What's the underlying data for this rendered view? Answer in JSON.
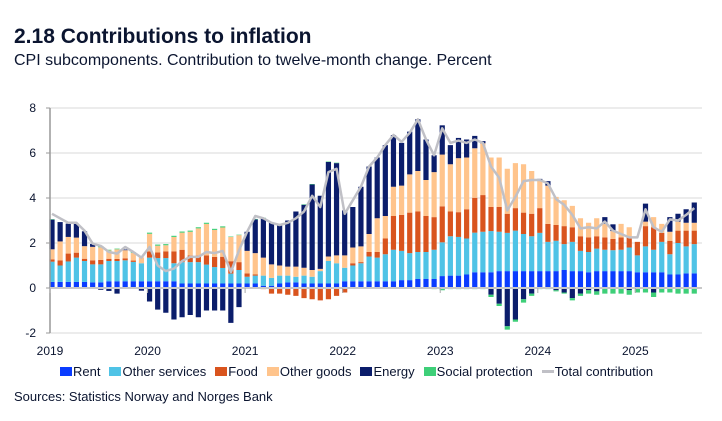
{
  "header": {
    "title": "2.18 Contributions to inflation",
    "subtitle": "CPI subcomponents. Contribution to twelve-month change. Percent"
  },
  "source": "Sources: Statistics Norway and Norges Bank",
  "chart_data": {
    "type": "bar",
    "stacked": true,
    "ylim": [
      -2,
      8
    ],
    "yticks": [
      -2,
      0,
      2,
      4,
      6,
      8
    ],
    "xtick_labels": [
      "2019",
      "2020",
      "2021",
      "2022",
      "2023",
      "2024",
      "2025"
    ],
    "grid": true,
    "legend_position": "bottom",
    "categories": [
      "2019-01",
      "2019-02",
      "2019-03",
      "2019-04",
      "2019-05",
      "2019-06",
      "2019-07",
      "2019-08",
      "2019-09",
      "2019-10",
      "2019-11",
      "2019-12",
      "2020-01",
      "2020-02",
      "2020-03",
      "2020-04",
      "2020-05",
      "2020-06",
      "2020-07",
      "2020-08",
      "2020-09",
      "2020-10",
      "2020-11",
      "2020-12",
      "2021-01",
      "2021-02",
      "2021-03",
      "2021-04",
      "2021-05",
      "2021-06",
      "2021-07",
      "2021-08",
      "2021-09",
      "2021-10",
      "2021-11",
      "2021-12",
      "2022-01",
      "2022-02",
      "2022-03",
      "2022-04",
      "2022-05",
      "2022-06",
      "2022-07",
      "2022-08",
      "2022-09",
      "2022-10",
      "2022-11",
      "2022-12",
      "2023-01",
      "2023-02",
      "2023-03",
      "2023-04",
      "2023-05",
      "2023-06",
      "2023-07",
      "2023-08",
      "2023-09",
      "2023-10",
      "2023-11",
      "2023-12",
      "2024-01",
      "2024-02",
      "2024-03",
      "2024-04",
      "2024-05",
      "2024-06",
      "2024-07",
      "2024-08",
      "2024-09",
      "2024-10",
      "2024-11",
      "2024-12",
      "2025-01",
      "2025-02",
      "2025-03",
      "2025-04",
      "2025-05",
      "2025-06",
      "2025-07",
      "2025-08"
    ],
    "series": [
      {
        "name": "Rent",
        "color": "#0a3cff",
        "values": [
          0.27,
          0.27,
          0.27,
          0.27,
          0.27,
          0.25,
          0.25,
          0.3,
          0.3,
          0.3,
          0.3,
          0.3,
          0.3,
          0.3,
          0.3,
          0.3,
          0.2,
          0.2,
          0.2,
          0.2,
          0.2,
          0.2,
          0.2,
          0.2,
          0.2,
          0.2,
          0.1,
          0.1,
          0.2,
          0.25,
          0.25,
          0.2,
          0.2,
          0.2,
          0.2,
          0.2,
          0.3,
          0.3,
          0.3,
          0.3,
          0.3,
          0.3,
          0.3,
          0.35,
          0.35,
          0.4,
          0.4,
          0.4,
          0.53,
          0.55,
          0.55,
          0.6,
          0.7,
          0.7,
          0.7,
          0.75,
          0.75,
          0.75,
          0.75,
          0.75,
          0.75,
          0.75,
          0.75,
          0.8,
          0.75,
          0.75,
          0.7,
          0.75,
          0.75,
          0.75,
          0.75,
          0.75,
          0.7,
          0.7,
          0.7,
          0.7,
          0.6,
          0.6,
          0.65,
          0.65
        ]
      },
      {
        "name": "Other services",
        "color": "#4fc3e6",
        "values": [
          0.9,
          0.73,
          0.91,
          1.08,
          0.93,
          0.8,
          0.8,
          0.9,
          0.9,
          0.93,
          0.86,
          0.8,
          1.05,
          1.03,
          1.03,
          0.8,
          0.95,
          0.95,
          0.95,
          0.84,
          0.73,
          0.69,
          0.44,
          0.6,
          0.3,
          0.35,
          0.45,
          0.35,
          0.35,
          0.3,
          0.25,
          0.35,
          0.3,
          0.55,
          1.0,
          0.9,
          0.6,
          0.7,
          0.8,
          1.1,
          1.05,
          1.2,
          1.4,
          1.3,
          1.2,
          1.2,
          1.2,
          1.3,
          1.5,
          1.75,
          1.72,
          1.6,
          1.76,
          1.8,
          1.83,
          1.75,
          1.7,
          1.8,
          1.65,
          1.55,
          1.7,
          1.3,
          1.35,
          1.15,
          1.3,
          0.9,
          0.9,
          1.0,
          0.95,
          0.93,
          0.95,
          1.05,
          0.75,
          1.15,
          1.0,
          1.35,
          0.9,
          1.4,
          1.2,
          1.3
        ]
      },
      {
        "name": "Food",
        "color": "#d9541e",
        "values": [
          0.1,
          0.23,
          0.35,
          0.22,
          0.1,
          0.18,
          0.2,
          0.1,
          0.09,
          0.09,
          0.06,
          0,
          0.28,
          0.25,
          0.3,
          0.53,
          0.55,
          0.3,
          0.3,
          0.41,
          0.45,
          0.5,
          0.55,
          0.35,
          0.15,
          0.05,
          -0.05,
          -0.25,
          -0.25,
          -0.3,
          -0.35,
          -0.45,
          -0.5,
          -0.55,
          -0.5,
          -0.35,
          -0.2,
          0.1,
          0.05,
          0.2,
          0.25,
          0.7,
          1.5,
          1.6,
          1.8,
          1.8,
          1.6,
          1.45,
          1.6,
          1.1,
          1.1,
          1.3,
          1.55,
          1.63,
          1.07,
          1.1,
          0.85,
          1.0,
          0.95,
          1.0,
          1.1,
          0.8,
          0.7,
          0.8,
          0.65,
          0.65,
          0.65,
          0.55,
          0.55,
          0.5,
          0.55,
          0.45,
          0.6,
          0.9,
          1.0,
          0.4,
          0.6,
          0.55,
          0.7,
          0.6
        ]
      },
      {
        "name": "Other goods",
        "color": "#ffc48c",
        "values": [
          0.45,
          0.84,
          0.74,
          0.67,
          0.56,
          0.6,
          0.56,
          0.37,
          0.43,
          0.36,
          0.34,
          0.26,
          0.78,
          0.3,
          0.27,
          0.64,
          0.76,
          1.05,
          1.2,
          1.4,
          1.2,
          1.3,
          1.08,
          1.2,
          1.0,
          0.95,
          0.8,
          0.6,
          0.45,
          0.4,
          0.45,
          0.35,
          0.3,
          0.1,
          0.2,
          0.35,
          0.55,
          0.7,
          0.7,
          0.8,
          1.5,
          1.0,
          1.3,
          1.3,
          1.7,
          1.8,
          1.6,
          2.0,
          2.3,
          2.1,
          2.4,
          2.3,
          2.2,
          2.3,
          2.2,
          2.2,
          2.0,
          2.0,
          2.15,
          1.9,
          1.25,
          1.7,
          1.25,
          1.15,
          0.95,
          0.8,
          0.65,
          0.8,
          0.6,
          0.35,
          0.6,
          0.45,
          0,
          0.2,
          0.45,
          0.4,
          0.4,
          0.4,
          0.35,
          0.35
        ]
      },
      {
        "name": "Energy",
        "color": "#0b1d6b",
        "values": [
          1.32,
          0.86,
          0.59,
          0.62,
          0.66,
          0.13,
          -0.08,
          -0.13,
          -0.25,
          0.03,
          0,
          -0.12,
          -0.6,
          -0.96,
          -1.1,
          -1.4,
          -1.3,
          -1.2,
          -1.3,
          -1.0,
          -1.0,
          -1.0,
          -1.55,
          -0.85,
          0.85,
          1.5,
          1.75,
          1.85,
          1.85,
          2.05,
          2.45,
          2.8,
          3.8,
          3.25,
          4.2,
          4.1,
          2.0,
          1.8,
          2.65,
          3.0,
          2.7,
          3.15,
          2.3,
          1.9,
          1.9,
          2.3,
          1.8,
          0.75,
          1.3,
          0.85,
          0.9,
          0.8,
          0.55,
          0.1,
          -0.3,
          -0.7,
          -1.7,
          -1.4,
          -0.5,
          -0.25,
          0.05,
          0.2,
          -0.1,
          -0.2,
          -0.45,
          -0.25,
          -0.1,
          -0.15,
          0.3,
          0.3,
          0,
          -0.1,
          0,
          0.8,
          -0.2,
          0,
          0.65,
          0.35,
          0.6,
          0.9
        ]
      },
      {
        "name": "Social protection",
        "color": "#3ecf78",
        "values": [
          0.02,
          0,
          0,
          0,
          0,
          0,
          0.05,
          0.03,
          0.03,
          0,
          0.03,
          0,
          0.05,
          0.05,
          0.05,
          0.05,
          0.05,
          0.05,
          0.05,
          0.05,
          0.05,
          0.05,
          0.02,
          0.02,
          0,
          0.02,
          0.02,
          0,
          0,
          0,
          0,
          0.02,
          0.02,
          0,
          0.02,
          0.02,
          0,
          0,
          0,
          0,
          0,
          0,
          0,
          0,
          0,
          0,
          0,
          -0.05,
          -0.1,
          -0.05,
          -0.05,
          -0.05,
          -0.05,
          -0.05,
          -0.1,
          -0.1,
          -0.15,
          -0.1,
          -0.15,
          -0.1,
          -0.05,
          -0.05,
          -0.05,
          -0.05,
          -0.1,
          -0.1,
          -0.15,
          -0.15,
          -0.25,
          -0.25,
          -0.25,
          -0.2,
          -0.2,
          -0.2,
          -0.2,
          -0.2,
          -0.2,
          -0.25,
          -0.25,
          -0.25
        ]
      }
    ],
    "line": {
      "name": "Total contribution",
      "color": "#c0c0c6",
      "values": [
        3.3,
        3.1,
        2.9,
        2.9,
        2.55,
        1.97,
        1.87,
        1.6,
        1.53,
        1.82,
        1.6,
        1.35,
        1.82,
        1.0,
        0.75,
        0.86,
        1.2,
        1.38,
        1.38,
        1.6,
        1.55,
        1.65,
        0.71,
        1.67,
        2.5,
        3.2,
        3.1,
        2.9,
        2.8,
        2.9,
        3.1,
        3.4,
        4.1,
        3.6,
        5.15,
        5.3,
        3.3,
        3.9,
        4.5,
        5.4,
        5.8,
        6.35,
        6.8,
        6.5,
        6.9,
        7.5,
        6.6,
        5.9,
        7.1,
        6.45,
        6.55,
        6.45,
        6.6,
        6.45,
        5.4,
        4.9,
        3.45,
        4.05,
        4.75,
        4.8,
        4.8,
        4.65,
        3.95,
        3.7,
        3.25,
        2.65,
        2.7,
        2.65,
        2.95,
        2.55,
        2.4,
        2.25,
        2.25,
        3.5,
        2.7,
        2.5,
        3.05,
        3.0,
        3.25,
        3.55
      ]
    }
  }
}
